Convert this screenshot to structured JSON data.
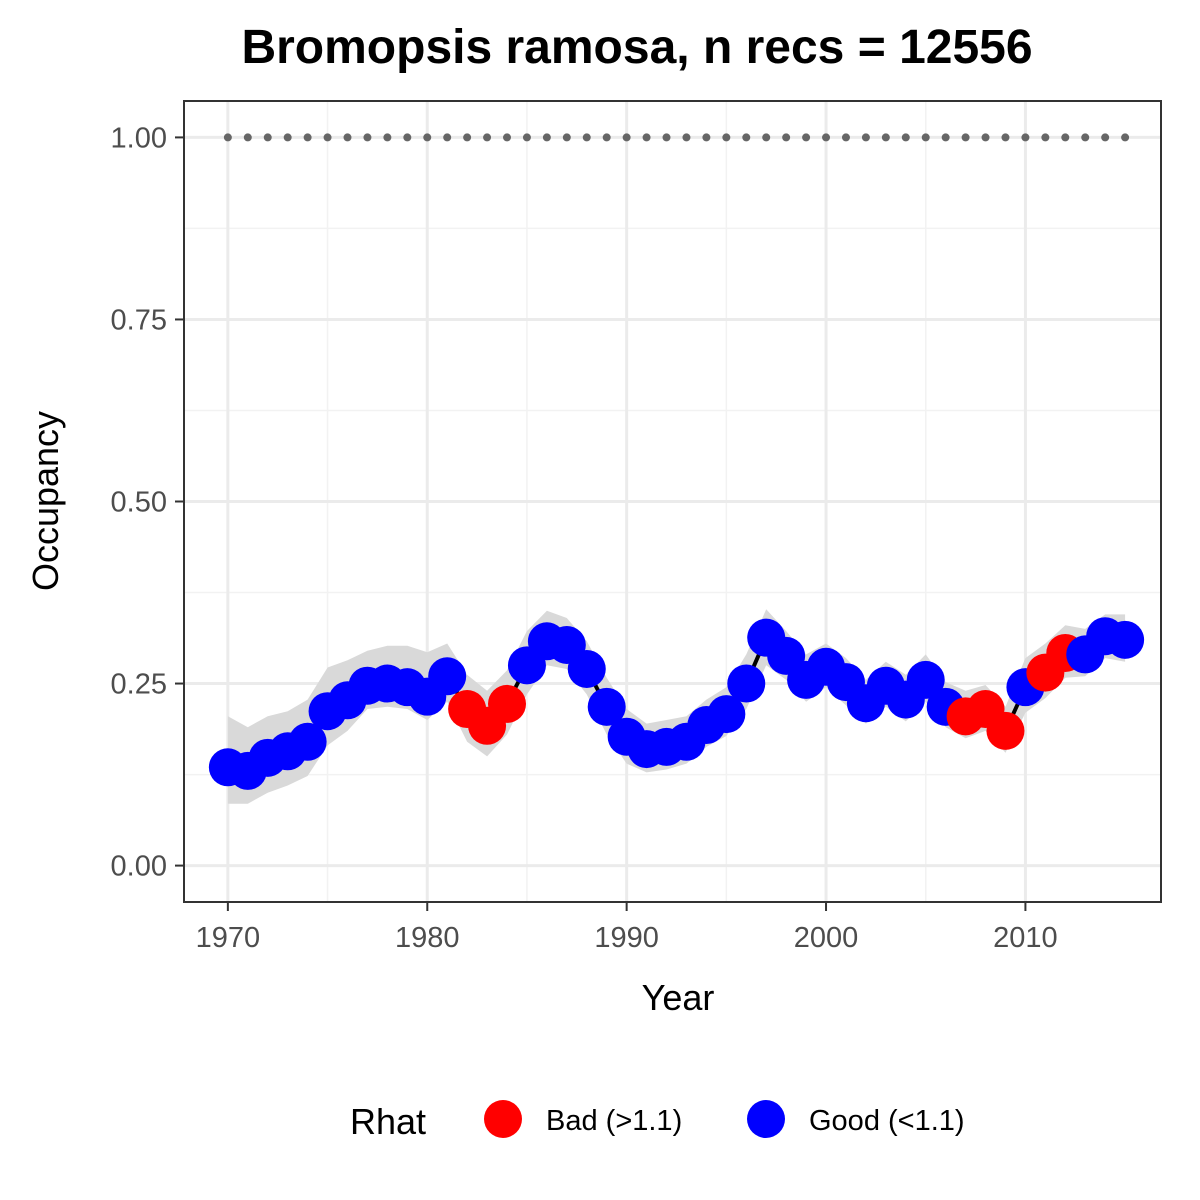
{
  "chart_data": {
    "type": "scatter",
    "title": "Bromopsis ramosa, n recs = 12556",
    "xlabel": "Year",
    "ylabel": "Occupancy",
    "xlim": [
      1967.8,
      2016.8
    ],
    "ylim": [
      -0.05,
      1.05
    ],
    "x_ticks": [
      1970,
      1980,
      1990,
      2000,
      2010
    ],
    "x_tick_labels": [
      "1970",
      "1980",
      "1990",
      "2000",
      "2010"
    ],
    "y_ticks": [
      0,
      0.25,
      0.5,
      0.75,
      1
    ],
    "y_tick_labels": [
      "0.00",
      "0.25",
      "0.50",
      "0.75",
      "1.00"
    ],
    "grid": true,
    "legend": {
      "title": "Rhat",
      "position": "bottom",
      "entries": [
        {
          "label": "Bad (>1.1)",
          "color": "#ff0000"
        },
        {
          "label": "Good (<1.1)",
          "color": "#0000ff"
        }
      ]
    },
    "reference_line": {
      "y": 1.0,
      "style": "dotted",
      "color": "#666666"
    },
    "colors": {
      "bad": "#ff0000",
      "good": "#0000ff",
      "band": "#d9d9d9",
      "line": "#000000"
    },
    "x": [
      1970,
      1971,
      1972,
      1973,
      1974,
      1975,
      1976,
      1977,
      1978,
      1979,
      1980,
      1981,
      1982,
      1983,
      1984,
      1985,
      1986,
      1987,
      1988,
      1989,
      1990,
      1991,
      1992,
      1993,
      1994,
      1995,
      1996,
      1997,
      1998,
      1999,
      2000,
      2001,
      2002,
      2003,
      2004,
      2005,
      2006,
      2007,
      2008,
      2009,
      2010,
      2011,
      2012,
      2013,
      2014,
      2015
    ],
    "y": [
      0.135,
      0.13,
      0.148,
      0.157,
      0.17,
      0.212,
      0.227,
      0.247,
      0.25,
      0.245,
      0.232,
      0.26,
      0.215,
      0.192,
      0.222,
      0.275,
      0.308,
      0.303,
      0.27,
      0.218,
      0.177,
      0.16,
      0.163,
      0.17,
      0.193,
      0.208,
      0.25,
      0.313,
      0.288,
      0.255,
      0.273,
      0.252,
      0.223,
      0.247,
      0.228,
      0.255,
      0.218,
      0.205,
      0.215,
      0.185,
      0.245,
      0.265,
      0.292,
      0.29,
      0.315,
      0.31
    ],
    "lower": [
      0.085,
      0.085,
      0.1,
      0.11,
      0.123,
      0.165,
      0.185,
      0.215,
      0.218,
      0.215,
      0.2,
      0.225,
      0.17,
      0.15,
      0.18,
      0.235,
      0.275,
      0.27,
      0.235,
      0.18,
      0.14,
      0.128,
      0.132,
      0.14,
      0.163,
      0.178,
      0.215,
      0.275,
      0.255,
      0.225,
      0.245,
      0.22,
      0.195,
      0.218,
      0.198,
      0.225,
      0.19,
      0.175,
      0.185,
      0.155,
      0.21,
      0.23,
      0.258,
      0.26,
      0.285,
      0.28
    ],
    "upper": [
      0.205,
      0.19,
      0.205,
      0.212,
      0.228,
      0.272,
      0.282,
      0.295,
      0.302,
      0.302,
      0.293,
      0.305,
      0.262,
      0.24,
      0.268,
      0.322,
      0.35,
      0.34,
      0.308,
      0.258,
      0.215,
      0.195,
      0.2,
      0.205,
      0.228,
      0.245,
      0.29,
      0.352,
      0.322,
      0.29,
      0.305,
      0.285,
      0.255,
      0.28,
      0.262,
      0.29,
      0.252,
      0.24,
      0.248,
      0.218,
      0.285,
      0.305,
      0.33,
      0.325,
      0.345,
      0.345
    ],
    "rhat_status": [
      "good",
      "good",
      "good",
      "good",
      "good",
      "good",
      "good",
      "good",
      "good",
      "good",
      "good",
      "good",
      "bad",
      "bad",
      "bad",
      "good",
      "good",
      "good",
      "good",
      "good",
      "good",
      "good",
      "good",
      "good",
      "good",
      "good",
      "good",
      "good",
      "good",
      "good",
      "good",
      "good",
      "good",
      "good",
      "good",
      "good",
      "good",
      "bad",
      "bad",
      "bad",
      "good",
      "bad",
      "bad",
      "good",
      "good",
      "good"
    ]
  }
}
